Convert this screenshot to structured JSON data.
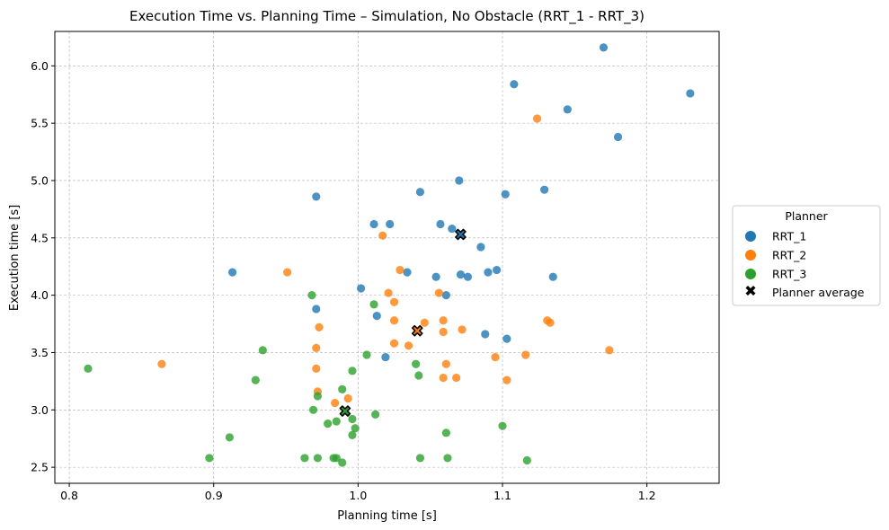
{
  "chart_data": {
    "type": "scatter",
    "title": "Execution Time vs. Planning Time – Simulation, No Obstacle (RRT_1 - RRT_3)",
    "xlabel": "Planning time [s]",
    "ylabel": "Execution time [s]",
    "xlim": [
      0.79,
      1.25
    ],
    "ylim": [
      2.36,
      6.3
    ],
    "xticks": [
      0.8,
      0.9,
      1.0,
      1.1,
      1.2
    ],
    "xtick_labels": [
      "0.8",
      "0.9",
      "1.0",
      "1.1",
      "1.2"
    ],
    "yticks": [
      2.5,
      3.0,
      3.5,
      4.0,
      4.5,
      5.0,
      5.5,
      6.0
    ],
    "ytick_labels": [
      "2.5",
      "3.0",
      "3.5",
      "4.0",
      "4.5",
      "5.0",
      "5.5",
      "6.0"
    ],
    "grid": true,
    "legend": {
      "title": "Planner",
      "placement": "outside-right",
      "entries": [
        "RRT_1",
        "RRT_2",
        "RRT_3",
        "Planner average"
      ]
    },
    "series": [
      {
        "name": "RRT_1",
        "color": "#1f77b4",
        "points": [
          [
            1.17,
            6.16
          ],
          [
            1.108,
            5.84
          ],
          [
            1.23,
            5.76
          ],
          [
            1.145,
            5.62
          ],
          [
            1.18,
            5.38
          ],
          [
            1.07,
            5.0
          ],
          [
            1.043,
            4.9
          ],
          [
            1.129,
            4.92
          ],
          [
            1.102,
            4.88
          ],
          [
            0.971,
            4.86
          ],
          [
            1.011,
            4.62
          ],
          [
            1.022,
            4.62
          ],
          [
            1.057,
            4.62
          ],
          [
            1.065,
            4.58
          ],
          [
            1.085,
            4.42
          ],
          [
            0.913,
            4.2
          ],
          [
            1.034,
            4.2
          ],
          [
            1.071,
            4.18
          ],
          [
            1.076,
            4.16
          ],
          [
            1.054,
            4.16
          ],
          [
            1.09,
            4.2
          ],
          [
            1.096,
            4.22
          ],
          [
            1.135,
            4.16
          ],
          [
            1.002,
            4.06
          ],
          [
            1.061,
            4.0
          ],
          [
            0.971,
            3.88
          ],
          [
            1.013,
            3.82
          ],
          [
            1.088,
            3.66
          ],
          [
            1.103,
            3.62
          ],
          [
            1.019,
            3.46
          ]
        ],
        "average": [
          1.071,
          4.53
        ]
      },
      {
        "name": "RRT_2",
        "color": "#ff7f0e",
        "points": [
          [
            1.124,
            5.54
          ],
          [
            1.017,
            4.52
          ],
          [
            0.951,
            4.2
          ],
          [
            1.029,
            4.22
          ],
          [
            1.021,
            4.02
          ],
          [
            1.056,
            4.02
          ],
          [
            1.025,
            3.94
          ],
          [
            1.025,
            3.78
          ],
          [
            1.046,
            3.76
          ],
          [
            1.059,
            3.78
          ],
          [
            1.131,
            3.78
          ],
          [
            1.133,
            3.76
          ],
          [
            0.973,
            3.72
          ],
          [
            1.059,
            3.68
          ],
          [
            1.072,
            3.7
          ],
          [
            1.025,
            3.58
          ],
          [
            1.035,
            3.56
          ],
          [
            0.971,
            3.54
          ],
          [
            1.174,
            3.52
          ],
          [
            1.095,
            3.46
          ],
          [
            1.116,
            3.48
          ],
          [
            0.864,
            3.4
          ],
          [
            1.061,
            3.4
          ],
          [
            0.971,
            3.36
          ],
          [
            1.059,
            3.28
          ],
          [
            1.068,
            3.28
          ],
          [
            1.103,
            3.26
          ],
          [
            0.972,
            3.16
          ],
          [
            0.993,
            3.1
          ],
          [
            0.984,
            3.06
          ]
        ],
        "average": [
          1.041,
          3.69
        ]
      },
      {
        "name": "RRT_3",
        "color": "#2ca02c",
        "points": [
          [
            0.968,
            4.0
          ],
          [
            1.011,
            3.92
          ],
          [
            0.934,
            3.52
          ],
          [
            1.006,
            3.48
          ],
          [
            1.04,
            3.4
          ],
          [
            0.813,
            3.36
          ],
          [
            0.996,
            3.34
          ],
          [
            1.042,
            3.3
          ],
          [
            0.929,
            3.26
          ],
          [
            0.989,
            3.18
          ],
          [
            0.972,
            3.12
          ],
          [
            0.969,
            3.0
          ],
          [
            1.012,
            2.96
          ],
          [
            0.996,
            2.92
          ],
          [
            0.985,
            2.9
          ],
          [
            0.979,
            2.88
          ],
          [
            0.998,
            2.84
          ],
          [
            1.061,
            2.8
          ],
          [
            0.996,
            2.78
          ],
          [
            1.1,
            2.86
          ],
          [
            0.911,
            2.76
          ],
          [
            0.897,
            2.58
          ],
          [
            0.963,
            2.58
          ],
          [
            0.972,
            2.58
          ],
          [
            0.983,
            2.58
          ],
          [
            0.985,
            2.58
          ],
          [
            1.043,
            2.58
          ],
          [
            1.062,
            2.58
          ],
          [
            0.989,
            2.54
          ],
          [
            1.117,
            2.56
          ]
        ],
        "average": [
          0.991,
          2.99
        ]
      }
    ]
  }
}
